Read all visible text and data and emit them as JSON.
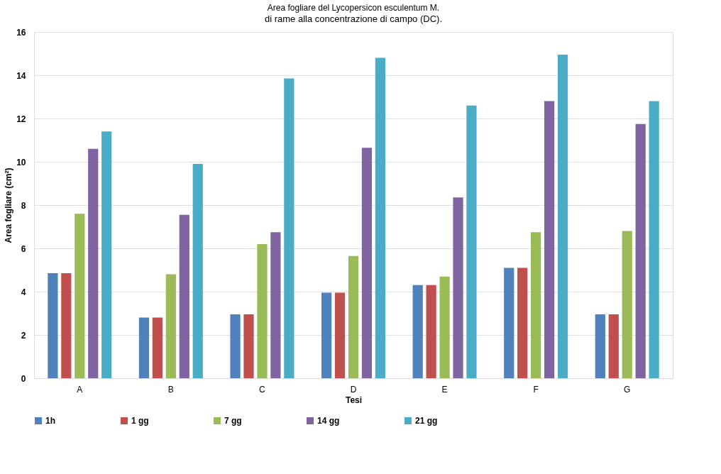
{
  "chart_data": {
    "type": "bar",
    "title": "Area fogliare del Lycopersicon esculentum M.",
    "xlabel": "Tesi",
    "ylabel": "Area fogliare (cm²)",
    "annotations": [
      "di rame alla concentrazione di campo (DC)."
    ],
    "categories": [
      "A",
      "B",
      "C",
      "D",
      "E",
      "F",
      "G"
    ],
    "series": [
      {
        "name": "1h",
        "color": "#4f81bd",
        "values": [
          4.85,
          2.8,
          2.95,
          3.95,
          4.3,
          5.1,
          2.95
        ]
      },
      {
        "name": "1 gg",
        "color": "#c0504d",
        "values": [
          4.85,
          2.8,
          2.95,
          3.95,
          4.3,
          5.1,
          2.95
        ]
      },
      {
        "name": "7 gg",
        "color": "#9bbb59",
        "values": [
          7.6,
          4.8,
          6.2,
          5.65,
          4.7,
          6.75,
          6.8
        ]
      },
      {
        "name": "14 gg",
        "color": "#8064a2",
        "values": [
          10.6,
          7.55,
          6.75,
          10.65,
          8.35,
          12.8,
          11.75
        ]
      },
      {
        "name": "21 gg",
        "color": "#4bacc6",
        "values": [
          11.4,
          9.9,
          13.85,
          14.8,
          12.6,
          14.95,
          12.8
        ]
      }
    ],
    "ylim": [
      0,
      16
    ],
    "yticks": [
      0,
      2,
      4,
      6,
      8,
      10,
      12,
      14,
      16
    ],
    "grid": "y",
    "legend": "bottom"
  }
}
